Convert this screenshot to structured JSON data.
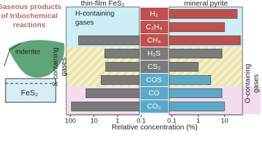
{
  "figure_title_lines": [
    "Gaseous products",
    "of tribochemical",
    "reactions"
  ],
  "illustration": {
    "indenter_label": "indenter",
    "substrate_label": "FeS₂"
  },
  "group_labels": {
    "h": [
      "H-containing",
      "gases"
    ],
    "s": [
      "S-containing",
      "gases"
    ],
    "o": [
      "O-containing",
      "gases"
    ]
  },
  "x_axis_label": "Relative concentration (%)",
  "chart_data": [
    {
      "type": "bar",
      "orientation": "horizontal",
      "title": "thin-film FeS₂",
      "log_scale": true,
      "categories": [
        "H₂",
        "C₂H₄",
        "CH₄",
        "H₂S",
        "CS₂",
        "COS",
        "CO",
        "CO₂"
      ],
      "values": [
        null,
        null,
        45,
        3.5,
        3.2,
        5,
        22,
        90
      ],
      "colors": [
        "#7a7a7a",
        "#7a7a7a",
        "#7a7a7a",
        "#7a7a7a",
        "#7a7a7a",
        "#7a7a7a",
        "#7a7a7a",
        "#7a7a7a"
      ],
      "xlim": [
        150,
        0.12
      ],
      "xticks": [
        100,
        10,
        1,
        0.1
      ]
    },
    {
      "type": "bar",
      "orientation": "horizontal",
      "title": "mineral pyrite",
      "log_scale": true,
      "values": [
        30,
        10,
        40,
        8,
        1,
        3,
        8,
        10
      ],
      "colors": [
        "#c0504d",
        "#c0504d",
        "#c0504d",
        "#7a7a7a",
        "#7a7a7a",
        "#5aa9c9",
        "#5aa9c9",
        "#5aa9c9"
      ],
      "xlim": [
        0.08,
        48
      ],
      "xticks": [
        0.1,
        1,
        10
      ]
    }
  ]
}
